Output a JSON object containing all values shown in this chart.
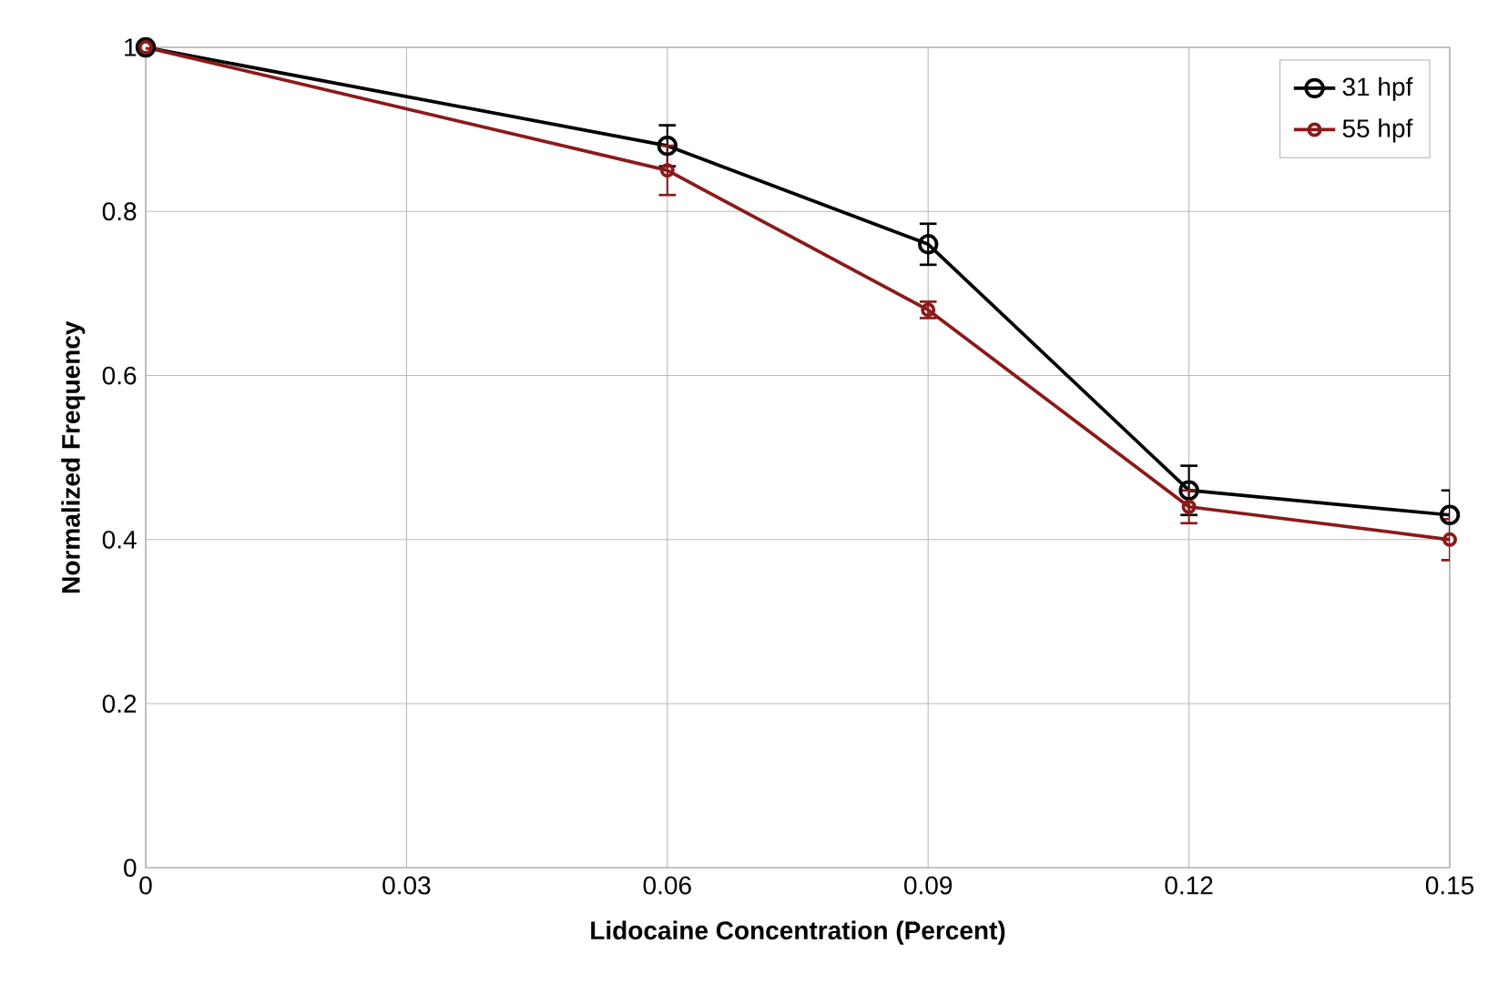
{
  "chart_data": {
    "type": "line",
    "xlabel": "Lidocaine Concentration (Percent)",
    "ylabel": "Normalized Frequency",
    "x": [
      0,
      0.06,
      0.09,
      0.12,
      0.15
    ],
    "series": [
      {
        "name": "31 hpf",
        "color": "#000000",
        "values": [
          1,
          0.88,
          0.76,
          0.46,
          0.43
        ],
        "errors": [
          null,
          0.025,
          0.025,
          0.03,
          0.03
        ]
      },
      {
        "name": "55 hpf",
        "color": "#8b1a1a",
        "values": [
          1,
          0.85,
          0.68,
          0.44,
          0.4
        ],
        "errors": [
          null,
          0.03,
          0.01,
          0.02,
          0.025
        ]
      }
    ],
    "xlim": [
      0,
      0.15
    ],
    "xticks": [
      0,
      0.03,
      0.06,
      0.09,
      0.12,
      0.15
    ],
    "ylim": [
      0,
      1
    ],
    "yticks": [
      0,
      0.2,
      0.4,
      0.6,
      0.8,
      1
    ],
    "grid": true,
    "legend": "top right",
    "marker": "circle",
    "line_style": "solid"
  }
}
